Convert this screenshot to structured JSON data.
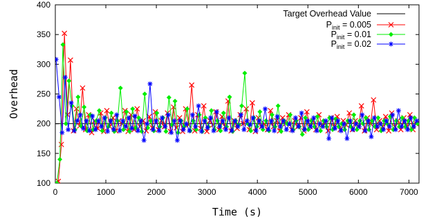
{
  "chart_data": {
    "type": "line",
    "xlabel": "Time (s)",
    "ylabel": "Overhead",
    "xlim": [
      0,
      7200
    ],
    "ylim": [
      100,
      400
    ],
    "x_ticks": [
      0,
      1000,
      2000,
      3000,
      4000,
      5000,
      6000,
      7000
    ],
    "y_ticks": [
      100,
      150,
      200,
      250,
      300,
      350,
      400
    ],
    "grid": false,
    "legend_position": "top-right",
    "target_overhead": {
      "name": "Target Overhead Value",
      "value": 200,
      "color": "#000000"
    },
    "series": [
      {
        "name": "P_init = 0.005",
        "legend": {
          "base": "P",
          "sub": "init",
          "rest": " = 0.005"
        },
        "color": "#ff0000",
        "marker": "x",
        "x": [
          0,
          60,
          120,
          180,
          240,
          300,
          360,
          420,
          480,
          540,
          600,
          660,
          720,
          780,
          840,
          900,
          960,
          1020,
          1080,
          1140,
          1200,
          1260,
          1320,
          1380,
          1440,
          1500,
          1560,
          1620,
          1680,
          1740,
          1800,
          1860,
          1920,
          1980,
          2040,
          2100,
          2160,
          2220,
          2280,
          2340,
          2400,
          2460,
          2520,
          2580,
          2640,
          2700,
          2760,
          2820,
          2880,
          2940,
          3000,
          3060,
          3120,
          3180,
          3240,
          3300,
          3360,
          3420,
          3480,
          3540,
          3600,
          3660,
          3720,
          3780,
          3840,
          3900,
          3960,
          4020,
          4080,
          4140,
          4200,
          4260,
          4320,
          4380,
          4440,
          4500,
          4560,
          4620,
          4680,
          4740,
          4800,
          4860,
          4920,
          4980,
          5040,
          5100,
          5160,
          5220,
          5280,
          5340,
          5400,
          5460,
          5520,
          5580,
          5640,
          5700,
          5760,
          5820,
          5880,
          5940,
          6000,
          6060,
          6120,
          6180,
          6240,
          6300,
          6360,
          6420,
          6480,
          6540,
          6600,
          6660,
          6720,
          6780,
          6840,
          6900,
          6960,
          7020,
          7080,
          7140
        ],
        "y": [
          100,
          103,
          165,
          352,
          215,
          307,
          188,
          225,
          196,
          260,
          190,
          215,
          185,
          205,
          192,
          218,
          187,
          222,
          195,
          210,
          188,
          205,
          200,
          222,
          187,
          215,
          190,
          225,
          195,
          205,
          188,
          212,
          193,
          220,
          190,
          205,
          195,
          218,
          187,
          228,
          193,
          210,
          187,
          225,
          198,
          265,
          188,
          215,
          192,
          230,
          187,
          205,
          198,
          220,
          190,
          212,
          195,
          238,
          188,
          205,
          192,
          215,
          200,
          225,
          190,
          235,
          187,
          210,
          195,
          200,
          190,
          222,
          195,
          205,
          188,
          210,
          200,
          215,
          190,
          205,
          195,
          210,
          188,
          220,
          195,
          205,
          190,
          215,
          198,
          200,
          188,
          210,
          195,
          212,
          190,
          205,
          198,
          218,
          190,
          205,
          195,
          230,
          188,
          210,
          200,
          240,
          190,
          205,
          195,
          212,
          188,
          218,
          195,
          205,
          190,
          210,
          195,
          215,
          190,
          200
        ]
      },
      {
        "name": "P_init = 0.01",
        "legend": {
          "base": "P",
          "sub": "init",
          "rest": " = 0.01"
        },
        "color": "#00ee00",
        "marker": "diamond",
        "x": [
          30,
          90,
          150,
          210,
          270,
          330,
          390,
          450,
          510,
          570,
          630,
          690,
          750,
          810,
          870,
          930,
          990,
          1050,
          1110,
          1170,
          1230,
          1290,
          1350,
          1410,
          1470,
          1530,
          1590,
          1650,
          1710,
          1770,
          1830,
          1890,
          1950,
          2010,
          2070,
          2130,
          2190,
          2250,
          2310,
          2370,
          2430,
          2490,
          2550,
          2610,
          2670,
          2730,
          2790,
          2850,
          2910,
          2970,
          3030,
          3090,
          3150,
          3210,
          3270,
          3330,
          3390,
          3450,
          3510,
          3570,
          3630,
          3690,
          3750,
          3810,
          3870,
          3930,
          3990,
          4050,
          4110,
          4170,
          4230,
          4290,
          4350,
          4410,
          4470,
          4530,
          4590,
          4650,
          4710,
          4770,
          4830,
          4890,
          4950,
          5010,
          5070,
          5130,
          5190,
          5250,
          5310,
          5370,
          5430,
          5490,
          5550,
          5610,
          5670,
          5730,
          5790,
          5850,
          5910,
          5970,
          6030,
          6090,
          6150,
          6210,
          6270,
          6330,
          6390,
          6450,
          6510,
          6570,
          6630,
          6690,
          6750,
          6810,
          6870,
          6930,
          6990,
          7050,
          7110,
          7170
        ],
        "y": [
          100,
          140,
          333,
          200,
          272,
          230,
          190,
          245,
          196,
          228,
          188,
          215,
          190,
          205,
          222,
          188,
          210,
          195,
          218,
          187,
          205,
          260,
          190,
          220,
          187,
          225,
          193,
          210,
          187,
          250,
          193,
          205,
          188,
          218,
          195,
          210,
          187,
          244,
          198,
          238,
          185,
          205,
          195,
          225,
          188,
          205,
          190,
          215,
          187,
          210,
          195,
          222,
          190,
          205,
          188,
          218,
          195,
          245,
          187,
          205,
          198,
          230,
          285,
          200,
          188,
          210,
          195,
          220,
          190,
          205,
          188,
          215,
          195,
          230,
          187,
          205,
          200,
          215,
          190,
          205,
          195,
          182,
          210,
          190,
          205,
          195,
          212,
          188,
          205,
          195,
          210,
          190,
          208,
          195,
          200,
          190,
          205,
          195,
          215,
          190,
          205,
          200,
          210,
          190,
          205,
          195,
          210,
          188,
          205,
          200,
          212,
          190,
          205,
          195,
          210,
          195,
          205,
          190,
          210,
          200
        ]
      },
      {
        "name": "P_init = 0.02",
        "legend": {
          "base": "P",
          "sub": "init",
          "rest": " = 0.02"
        },
        "color": "#0000ff",
        "marker": "star",
        "x": [
          15,
          75,
          135,
          195,
          255,
          315,
          375,
          435,
          495,
          555,
          615,
          675,
          735,
          795,
          855,
          915,
          975,
          1035,
          1095,
          1155,
          1215,
          1275,
          1335,
          1395,
          1455,
          1515,
          1575,
          1635,
          1695,
          1755,
          1815,
          1875,
          1935,
          1995,
          2055,
          2115,
          2175,
          2235,
          2295,
          2355,
          2415,
          2475,
          2535,
          2595,
          2655,
          2715,
          2775,
          2835,
          2895,
          2955,
          3015,
          3075,
          3135,
          3195,
          3255,
          3315,
          3375,
          3435,
          3495,
          3555,
          3615,
          3675,
          3735,
          3795,
          3855,
          3915,
          3975,
          4035,
          4095,
          4155,
          4215,
          4275,
          4335,
          4395,
          4455,
          4515,
          4575,
          4635,
          4695,
          4755,
          4815,
          4875,
          4935,
          4995,
          5055,
          5115,
          5175,
          5235,
          5295,
          5355,
          5415,
          5475,
          5535,
          5595,
          5655,
          5715,
          5775,
          5835,
          5895,
          5955,
          6015,
          6075,
          6135,
          6195,
          6255,
          6315,
          6375,
          6435,
          6495,
          6555,
          6615,
          6675,
          6735,
          6795,
          6855,
          6915,
          6975,
          7035,
          7095,
          7155
        ],
        "y": [
          308,
          245,
          185,
          278,
          190,
          235,
          188,
          205,
          215,
          192,
          205,
          188,
          213,
          190,
          205,
          195,
          210,
          187,
          205,
          190,
          215,
          188,
          205,
          195,
          210,
          192,
          213,
          188,
          205,
          172,
          200,
          267,
          190,
          205,
          188,
          210,
          195,
          215,
          185,
          205,
          172,
          205,
          190,
          200,
          188,
          215,
          195,
          230,
          187,
          205,
          193,
          210,
          188,
          220,
          195,
          205,
          190,
          210,
          188,
          205,
          195,
          215,
          190,
          205,
          198,
          210,
          188,
          205,
          195,
          225,
          190,
          205,
          188,
          212,
          195,
          205,
          190,
          200,
          188,
          210,
          195,
          218,
          190,
          205,
          195,
          210,
          188,
          200,
          195,
          205,
          175,
          210,
          192,
          205,
          188,
          200,
          175,
          205,
          190,
          200,
          195,
          215,
          188,
          205,
          178,
          210,
          195,
          200,
          190,
          205,
          195,
          215,
          190,
          222,
          195,
          205,
          190,
          210,
          195,
          205
        ]
      }
    ]
  }
}
